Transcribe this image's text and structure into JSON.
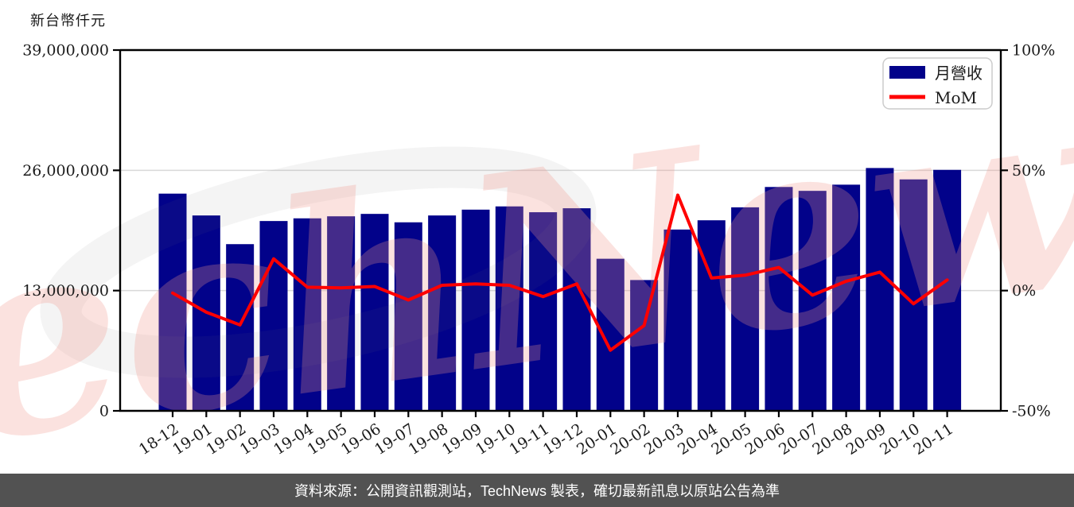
{
  "header": {
    "unit_label": "新台幣仟元"
  },
  "footer": {
    "text": "資料來源：公開資訊觀測站，TechNews 製表，確切最新訊息以原站公告為準",
    "background": "#525252",
    "text_color": "#ffffff"
  },
  "watermark": {
    "text": "TechNews",
    "color": "#f0968c"
  },
  "chart_data": {
    "type": "bar",
    "title": "",
    "unit_label": "新台幣仟元",
    "categories": [
      "18-12",
      "19-01",
      "19-02",
      "19-03",
      "19-04",
      "19-05",
      "19-06",
      "19-07",
      "19-08",
      "19-09",
      "19-10",
      "19-11",
      "19-12",
      "20-01",
      "20-02",
      "20-03",
      "20-04",
      "20-05",
      "20-06",
      "20-07",
      "20-08",
      "20-09",
      "20-10",
      "20-11"
    ],
    "series": [
      {
        "name": "月營收",
        "type": "bar",
        "axis": "left",
        "color": "#02028a",
        "values": [
          23480000,
          21120000,
          18020000,
          20520000,
          20810000,
          21030000,
          21290000,
          20380000,
          21120000,
          21750000,
          22100000,
          21470000,
          21900000,
          16440000,
          14140000,
          19600000,
          20600000,
          22000000,
          24200000,
          23780000,
          24450000,
          26250000,
          25020000,
          26050000
        ]
      },
      {
        "name": "MoM",
        "type": "line",
        "axis": "right",
        "color": "#ff0000",
        "values": [
          -1.0,
          -9.0,
          -14.3,
          13.2,
          1.4,
          1.1,
          1.7,
          -3.9,
          2.2,
          2.8,
          2.2,
          -2.5,
          2.8,
          -24.8,
          -14.5,
          39.7,
          5.2,
          6.4,
          9.6,
          -1.9,
          3.9,
          7.7,
          -5.5,
          4.4
        ]
      }
    ],
    "left_axis": {
      "label": "新台幣仟元",
      "range": [
        0,
        39000000
      ],
      "ticks": [
        {
          "value": 39000000,
          "label": "39,000,000"
        },
        {
          "value": 26000000,
          "label": "26,000,000"
        },
        {
          "value": 13000000,
          "label": "13,000,000"
        },
        {
          "value": 0,
          "label": "0"
        }
      ]
    },
    "right_axis": {
      "range": [
        -50,
        100
      ],
      "ticks": [
        {
          "value": 100,
          "label": "100%"
        },
        {
          "value": 50,
          "label": "50%"
        },
        {
          "value": 0,
          "label": "0%"
        },
        {
          "value": -50,
          "label": "-50%"
        }
      ]
    },
    "legend": {
      "position": "top-right",
      "entries": [
        {
          "label": "月營收",
          "swatch": "bar",
          "color": "#02028a"
        },
        {
          "label": "MoM",
          "swatch": "line",
          "color": "#ff0000"
        }
      ]
    },
    "grid": "horizontal",
    "grid_color": "#d9d9d9"
  }
}
